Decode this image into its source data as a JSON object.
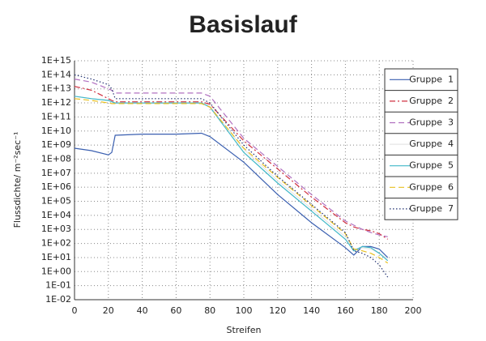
{
  "chart_data": {
    "type": "line",
    "title": "Basislauf",
    "x_label": "Streifen",
    "y_label": "Flussdichte/ m⁻²sec⁻¹",
    "yscale": "log",
    "grid": true,
    "legend": "upper right",
    "xlim": [
      0,
      200
    ],
    "xticks": [
      0,
      20,
      40,
      60,
      80,
      100,
      120,
      140,
      160,
      180,
      200
    ],
    "ylim": [
      0.01,
      1000000000000000.0
    ],
    "yticks": [
      {
        "value": 0.01,
        "label": "1E-02"
      },
      {
        "value": 0.1,
        "label": "1E-01"
      },
      {
        "value": 1,
        "label": "1E+00"
      },
      {
        "value": 10,
        "label": "1E+01"
      },
      {
        "value": 100,
        "label": "1E+02"
      },
      {
        "value": 1000,
        "label": "1E+03"
      },
      {
        "value": 10000.0,
        "label": "1E+04"
      },
      {
        "value": 100000.0,
        "label": "1E+05"
      },
      {
        "value": 1000000.0,
        "label": "1E+06"
      },
      {
        "value": 10000000.0,
        "label": "1E+07"
      },
      {
        "value": 100000000.0,
        "label": "1E+08"
      },
      {
        "value": 1000000000.0,
        "label": "1E+09"
      },
      {
        "value": 10000000000.0,
        "label": "1E+10"
      },
      {
        "value": 100000000000.0,
        "label": "1E+11"
      },
      {
        "value": 1000000000000.0,
        "label": "1E+12"
      },
      {
        "value": 10000000000000.0,
        "label": "1E+13"
      },
      {
        "value": 100000000000000.0,
        "label": "1E+14"
      },
      {
        "value": 1000000000000000.0,
        "label": "1E+15"
      }
    ],
    "x": [
      0,
      10,
      20,
      22,
      24,
      40,
      60,
      75,
      80,
      100,
      120,
      140,
      160,
      165,
      170,
      175,
      180,
      185
    ],
    "series": [
      {
        "name": "Gruppe  1",
        "color": "#3a5fb0",
        "dash": "solid",
        "values": [
          600000000.0,
          400000000.0,
          200000000.0,
          300000000.0,
          5000000000.0,
          6000000000.0,
          6000000000.0,
          7000000000.0,
          4000000000.0,
          60000000.0,
          300000.0,
          3000.0,
          50,
          15,
          60,
          60,
          40,
          10
        ]
      },
      {
        "name": "Gruppe  2",
        "color": "#d03040",
        "dash": "dashdot",
        "values": [
          15000000000000.0,
          8000000000000.0,
          2000000000000.0,
          1500000000000.0,
          1200000000000.0,
          1200000000000.0,
          1200000000000.0,
          1200000000000.0,
          800000000000.0,
          2000000000.0,
          20000000.0,
          200000.0,
          3000,
          1500,
          1000,
          800,
          500,
          200
        ]
      },
      {
        "name": "Gruppe  3",
        "color": "#b070c0",
        "dash": "dash",
        "values": [
          50000000000000.0,
          30000000000000.0,
          10000000000000.0,
          8000000000000.0,
          5000000000000.0,
          5000000000000.0,
          5000000000000.0,
          5000000000000.0,
          3000000000000.0,
          3000000000.0,
          30000000.0,
          300000.0,
          4000,
          2000,
          1000,
          600,
          400,
          300
        ]
      },
      {
        "name": "Gruppe  4",
        "color": "#e6e6e6",
        "dash": "solid",
        "values": [
          3000000000000.0,
          2000000000000.0,
          1500000000000.0,
          1200000000000.0,
          1000000000000.0,
          1000000000000.0,
          1000000000000.0,
          1000000000000.0,
          600000000000.0,
          500000000.0,
          3000000.0,
          30000.0,
          300,
          40,
          50,
          40,
          20,
          8
        ]
      },
      {
        "name": "Gruppe  5",
        "color": "#40b8c8",
        "dash": "solid",
        "values": [
          3000000000000.0,
          2000000000000.0,
          1500000000000.0,
          1200000000000.0,
          1000000000000.0,
          1000000000000.0,
          1000000000000.0,
          1000000000000.0,
          500000000000.0,
          300000000.0,
          2000000.0,
          20000.0,
          200,
          30,
          60,
          50,
          20,
          6
        ]
      },
      {
        "name": "Gruppe  6",
        "color": "#e8c020",
        "dash": "dash",
        "values": [
          2000000000000.0,
          1500000000000.0,
          1000000000000.0,
          900000000000.0,
          900000000000.0,
          900000000000.0,
          900000000000.0,
          900000000000.0,
          500000000000.0,
          600000000.0,
          5000000.0,
          50000.0,
          500,
          40,
          30,
          20,
          10,
          4
        ]
      },
      {
        "name": "Gruppe  7",
        "color": "#203070",
        "dash": "dot",
        "values": [
          100000000000000.0,
          50000000000000.0,
          20000000000000.0,
          10000000000000.0,
          2000000000000.0,
          2000000000000.0,
          2000000000000.0,
          2000000000000.0,
          1000000000000.0,
          1000000000.0,
          6000000.0,
          60000.0,
          600,
          30,
          20,
          10,
          3,
          0.4
        ]
      }
    ]
  }
}
